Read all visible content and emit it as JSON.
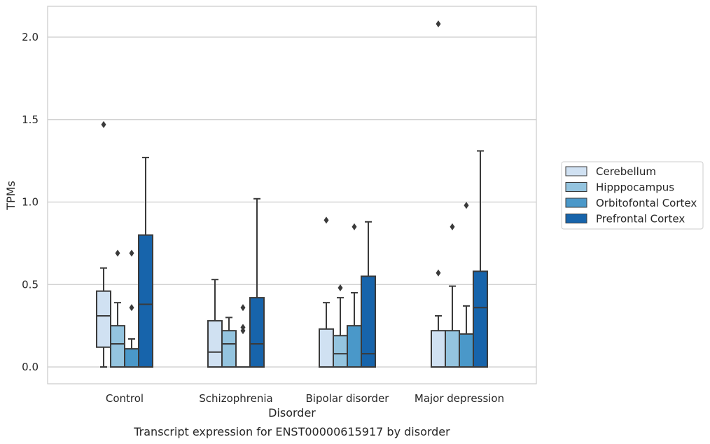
{
  "chart_data": {
    "type": "box",
    "caption": "Transcript expression for ENST00000615917 by disorder",
    "xlabel": "Disorder",
    "ylabel": "TPMs",
    "ylim": [
      -0.1,
      2.19
    ],
    "yticks": [
      0.0,
      0.5,
      1.0,
      1.5,
      2.0
    ],
    "ytick_labels": [
      "0.0",
      "0.5",
      "1.0",
      "1.5",
      "2.0"
    ],
    "grid": "horizontal",
    "legend_position": "right",
    "categories": [
      "Control",
      "Schizophrenia",
      "Bipolar disorder",
      "Major depression"
    ],
    "series": [
      {
        "name": "Cerebellum",
        "color": "#d0e1f2",
        "boxes": [
          {
            "whisker_low": 0.0,
            "q1": 0.12,
            "median": 0.31,
            "q3": 0.46,
            "whisker_high": 0.6,
            "outliers": [
              1.47
            ]
          },
          {
            "whisker_low": 0.0,
            "q1": 0.0,
            "median": 0.09,
            "q3": 0.28,
            "whisker_high": 0.53,
            "outliers": []
          },
          {
            "whisker_low": 0.0,
            "q1": 0.0,
            "median": 0.0,
            "q3": 0.23,
            "whisker_high": 0.39,
            "outliers": [
              0.89
            ]
          },
          {
            "whisker_low": 0.0,
            "q1": 0.0,
            "median": 0.0,
            "q3": 0.22,
            "whisker_high": 0.31,
            "outliers": [
              0.57,
              2.08
            ]
          }
        ]
      },
      {
        "name": "Hipppocampus",
        "color": "#94c4df",
        "boxes": [
          {
            "whisker_low": 0.0,
            "q1": 0.0,
            "median": 0.14,
            "q3": 0.25,
            "whisker_high": 0.39,
            "outliers": [
              0.69
            ]
          },
          {
            "whisker_low": 0.0,
            "q1": 0.0,
            "median": 0.14,
            "q3": 0.22,
            "whisker_high": 0.3,
            "outliers": []
          },
          {
            "whisker_low": 0.0,
            "q1": 0.0,
            "median": 0.08,
            "q3": 0.19,
            "whisker_high": 0.42,
            "outliers": [
              0.48
            ]
          },
          {
            "whisker_low": 0.0,
            "q1": 0.0,
            "median": 0.0,
            "q3": 0.22,
            "whisker_high": 0.49,
            "outliers": [
              0.85
            ]
          }
        ]
      },
      {
        "name": "Orbitofontal Cortex",
        "color": "#4a98c9",
        "boxes": [
          {
            "whisker_low": 0.0,
            "q1": 0.0,
            "median": 0.0,
            "q3": 0.11,
            "whisker_high": 0.17,
            "outliers": [
              0.36,
              0.69
            ]
          },
          {
            "whisker_low": 0.0,
            "q1": 0.0,
            "median": 0.0,
            "q3": 0.0,
            "whisker_high": 0.0,
            "outliers": [
              0.22,
              0.24,
              0.36
            ]
          },
          {
            "whisker_low": 0.0,
            "q1": 0.0,
            "median": 0.0,
            "q3": 0.25,
            "whisker_high": 0.45,
            "outliers": [
              0.85
            ]
          },
          {
            "whisker_low": 0.0,
            "q1": 0.0,
            "median": 0.0,
            "q3": 0.2,
            "whisker_high": 0.37,
            "outliers": [
              0.98
            ]
          }
        ]
      },
      {
        "name": "Prefrontal Cortex",
        "color": "#1764ab",
        "boxes": [
          {
            "whisker_low": 0.0,
            "q1": 0.0,
            "median": 0.38,
            "q3": 0.8,
            "whisker_high": 1.27,
            "outliers": []
          },
          {
            "whisker_low": 0.0,
            "q1": 0.0,
            "median": 0.14,
            "q3": 0.42,
            "whisker_high": 1.02,
            "outliers": []
          },
          {
            "whisker_low": 0.0,
            "q1": 0.0,
            "median": 0.08,
            "q3": 0.55,
            "whisker_high": 0.88,
            "outliers": []
          },
          {
            "whisker_low": 0.0,
            "q1": 0.0,
            "median": 0.36,
            "q3": 0.58,
            "whisker_high": 1.31,
            "outliers": []
          }
        ]
      }
    ]
  }
}
